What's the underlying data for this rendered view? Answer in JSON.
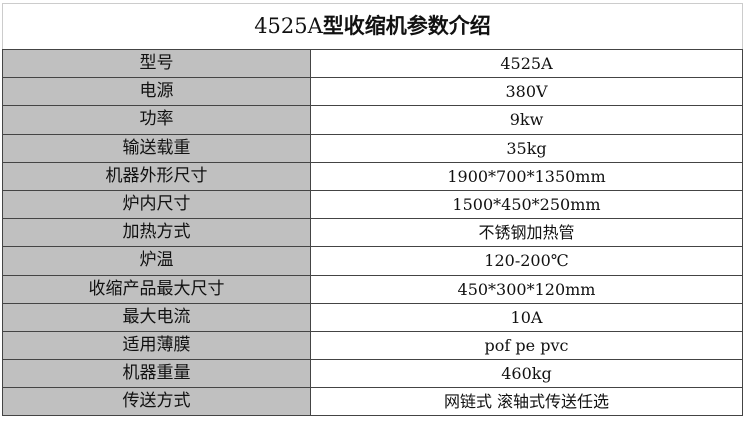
{
  "title": {
    "model": "4525A",
    "text": "型收缩机参数介绍"
  },
  "rows": [
    {
      "label": "型号",
      "value": "4525A"
    },
    {
      "label": "电源",
      "value": "380V"
    },
    {
      "label": "功率",
      "value": "9kw"
    },
    {
      "label": "输送载重",
      "value": "35kg"
    },
    {
      "label": "机器外形尺寸",
      "value": "1900*700*1350mm"
    },
    {
      "label": "炉内尺寸",
      "value": "1500*450*250mm"
    },
    {
      "label": "加热方式",
      "value": "不锈钢加热管"
    },
    {
      "label": "炉温",
      "value": "120-200℃"
    },
    {
      "label": "收缩产品最大尺寸",
      "value": "450*300*120mm"
    },
    {
      "label": "最大电流",
      "value": "10A"
    },
    {
      "label": "适用薄膜",
      "value": "pof pe pvc"
    },
    {
      "label": "机器重量",
      "value": "460kg"
    },
    {
      "label": "传送方式",
      "value": "网链式 滚轴式传送任选"
    }
  ]
}
